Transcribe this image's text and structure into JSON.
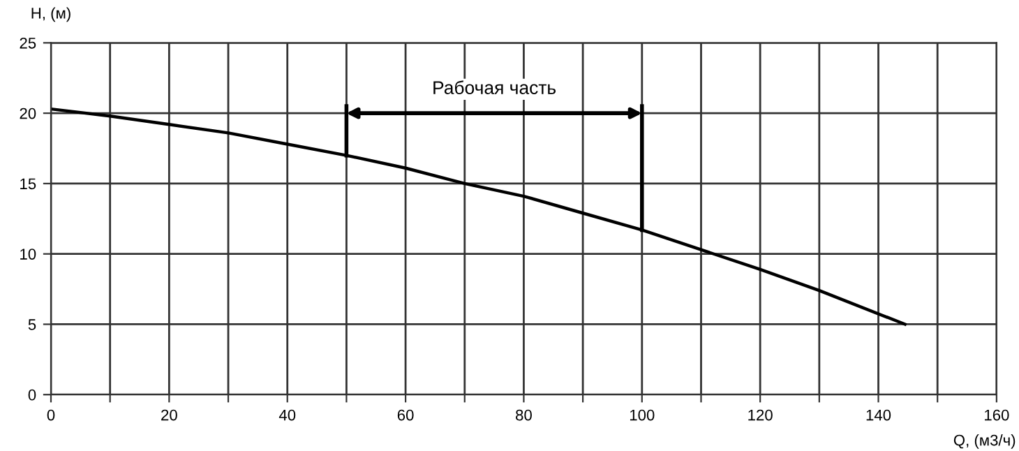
{
  "chart_data": {
    "type": "line",
    "xlabel": "Q, (м3/ч)",
    "ylabel": "H, (м)",
    "x": [
      0,
      10,
      20,
      30,
      40,
      50,
      60,
      70,
      80,
      90,
      100,
      110,
      120,
      130,
      144.5
    ],
    "series": [
      {
        "color": "#000000",
        "values": [
          20.3,
          19.8,
          19.2,
          18.6,
          17.8,
          17.0,
          16.1,
          15.0,
          14.1,
          12.9,
          11.7,
          10.3,
          8.9,
          7.4,
          5.0
        ]
      }
    ],
    "xlim": [
      0,
      160
    ],
    "ylim": [
      0,
      25
    ],
    "xticks": [
      0,
      {
        "value": 10,
        "label": null
      },
      20,
      {
        "value": 30,
        "label": null
      },
      40,
      {
        "value": 50,
        "label": null
      },
      60,
      {
        "value": 70,
        "label": null
      },
      80,
      {
        "value": 90,
        "label": null
      },
      100,
      {
        "value": 110,
        "label": null
      },
      120,
      {
        "value": 130,
        "label": null
      },
      140,
      {
        "value": 150,
        "label": null
      },
      160
    ],
    "yticks": [
      0,
      5,
      10,
      15,
      20,
      25
    ],
    "ref_lines": [
      {
        "axis": "x",
        "value": 50,
        "label": null,
        "color": "#000000"
      },
      {
        "axis": "x",
        "value": 100,
        "label": null,
        "color": "#000000"
      }
    ],
    "annotations": [
      "Рабочая часть"
    ],
    "grid": true,
    "legend": false,
    "marker": "none",
    "line_style": "solid"
  }
}
